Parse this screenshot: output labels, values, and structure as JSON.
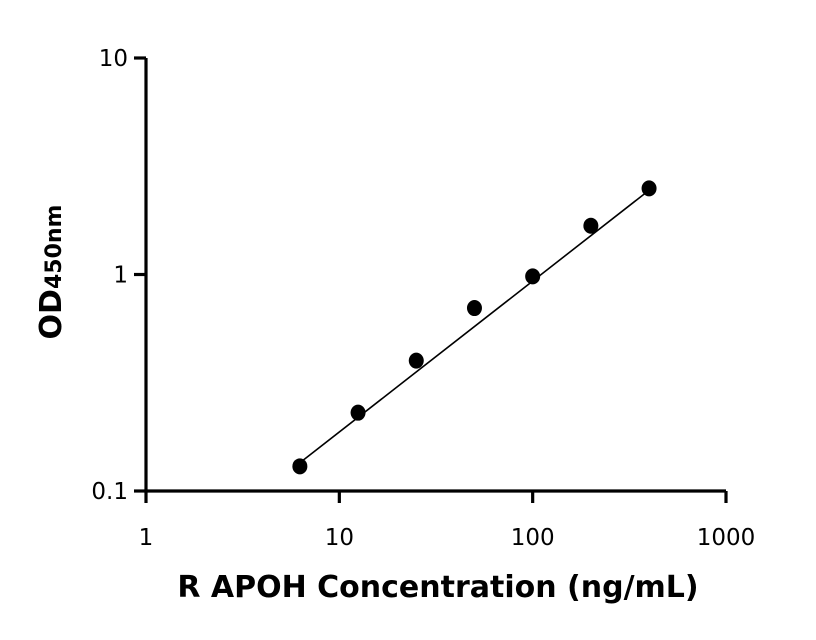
{
  "chart_data": {
    "type": "scatter",
    "x_scale": "log",
    "y_scale": "log",
    "xlabel": "R APOH Concentration (ng/mL)",
    "ylabel_main": "OD",
    "ylabel_sub": "450nm",
    "xlim": [
      1,
      1000
    ],
    "ylim": [
      0.1,
      10
    ],
    "x_ticks": [
      1,
      10,
      100,
      1000
    ],
    "x_tick_labels": [
      "1",
      "10",
      "100",
      "1000"
    ],
    "y_ticks": [
      0.1,
      1,
      10
    ],
    "y_tick_labels": [
      "0.1",
      "1",
      "10"
    ],
    "grid": false,
    "series": [
      {
        "x": [
          6.25,
          12.5,
          25,
          50,
          100,
          200,
          400
        ],
        "y": [
          0.13,
          0.23,
          0.4,
          0.7,
          0.98,
          1.68,
          2.5
        ]
      }
    ],
    "fit_line": {
      "x": [
        6.25,
        400
      ],
      "y": [
        0.135,
        2.45
      ]
    }
  }
}
